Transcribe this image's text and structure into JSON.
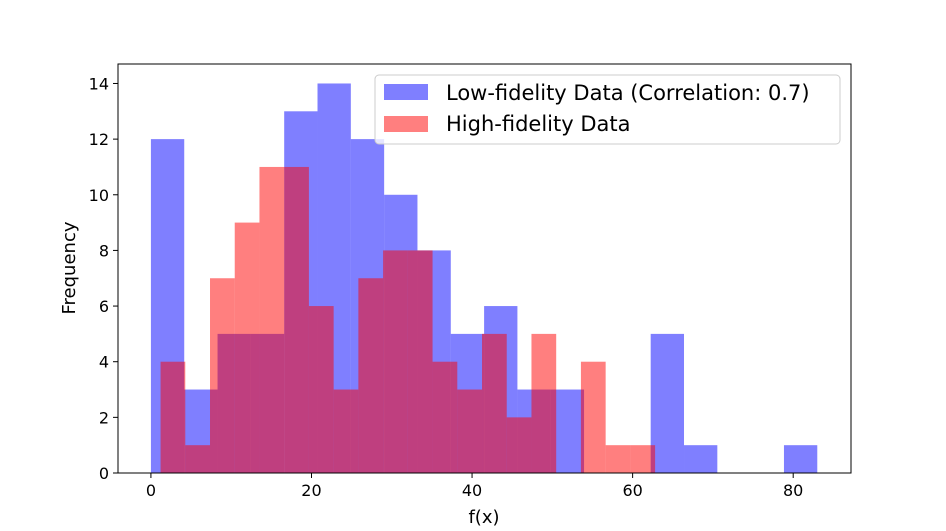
{
  "chart_data": {
    "type": "bar",
    "subtype": "overlaid-histogram",
    "xlabel": "f(x)",
    "ylabel": "Frequency",
    "xlim": [
      -4.1,
      87.2
    ],
    "ylim": [
      0,
      14.7
    ],
    "xticks": [
      0,
      20,
      40,
      60,
      80
    ],
    "yticks": [
      0,
      2,
      4,
      6,
      8,
      10,
      12,
      14
    ],
    "grid": false,
    "legend_position": "top-right",
    "series": [
      {
        "name": "Low-fidelity Data (Correlation: 0.7)",
        "color": "#0000ff",
        "alpha": 0.5,
        "bin_edges": [
          0.0,
          4.15,
          8.3,
          12.45,
          16.6,
          20.75,
          24.9,
          29.05,
          33.2,
          37.35,
          41.5,
          45.65,
          49.8,
          53.95,
          58.1,
          62.25,
          66.4,
          70.55,
          74.7,
          78.85,
          83.0
        ],
        "counts": [
          12,
          3,
          5,
          5,
          13,
          14,
          12,
          10,
          8,
          5,
          6,
          3,
          3,
          0,
          0,
          5,
          1,
          0,
          0,
          1
        ]
      },
      {
        "name": "High-fidelity Data",
        "color": "#ff0000",
        "alpha": 0.5,
        "bin_edges": [
          1.2,
          4.28,
          7.36,
          10.44,
          13.52,
          16.6,
          19.68,
          22.76,
          25.84,
          28.92,
          32.0,
          35.08,
          38.16,
          41.24,
          44.32,
          47.4,
          50.48,
          53.56,
          56.64,
          59.72,
          62.8,
          65.88
        ],
        "counts": [
          4,
          1,
          7,
          9,
          11,
          11,
          6,
          3,
          7,
          8,
          8,
          4,
          3,
          5,
          2,
          5,
          0,
          4,
          1,
          1,
          0
        ]
      }
    ]
  }
}
